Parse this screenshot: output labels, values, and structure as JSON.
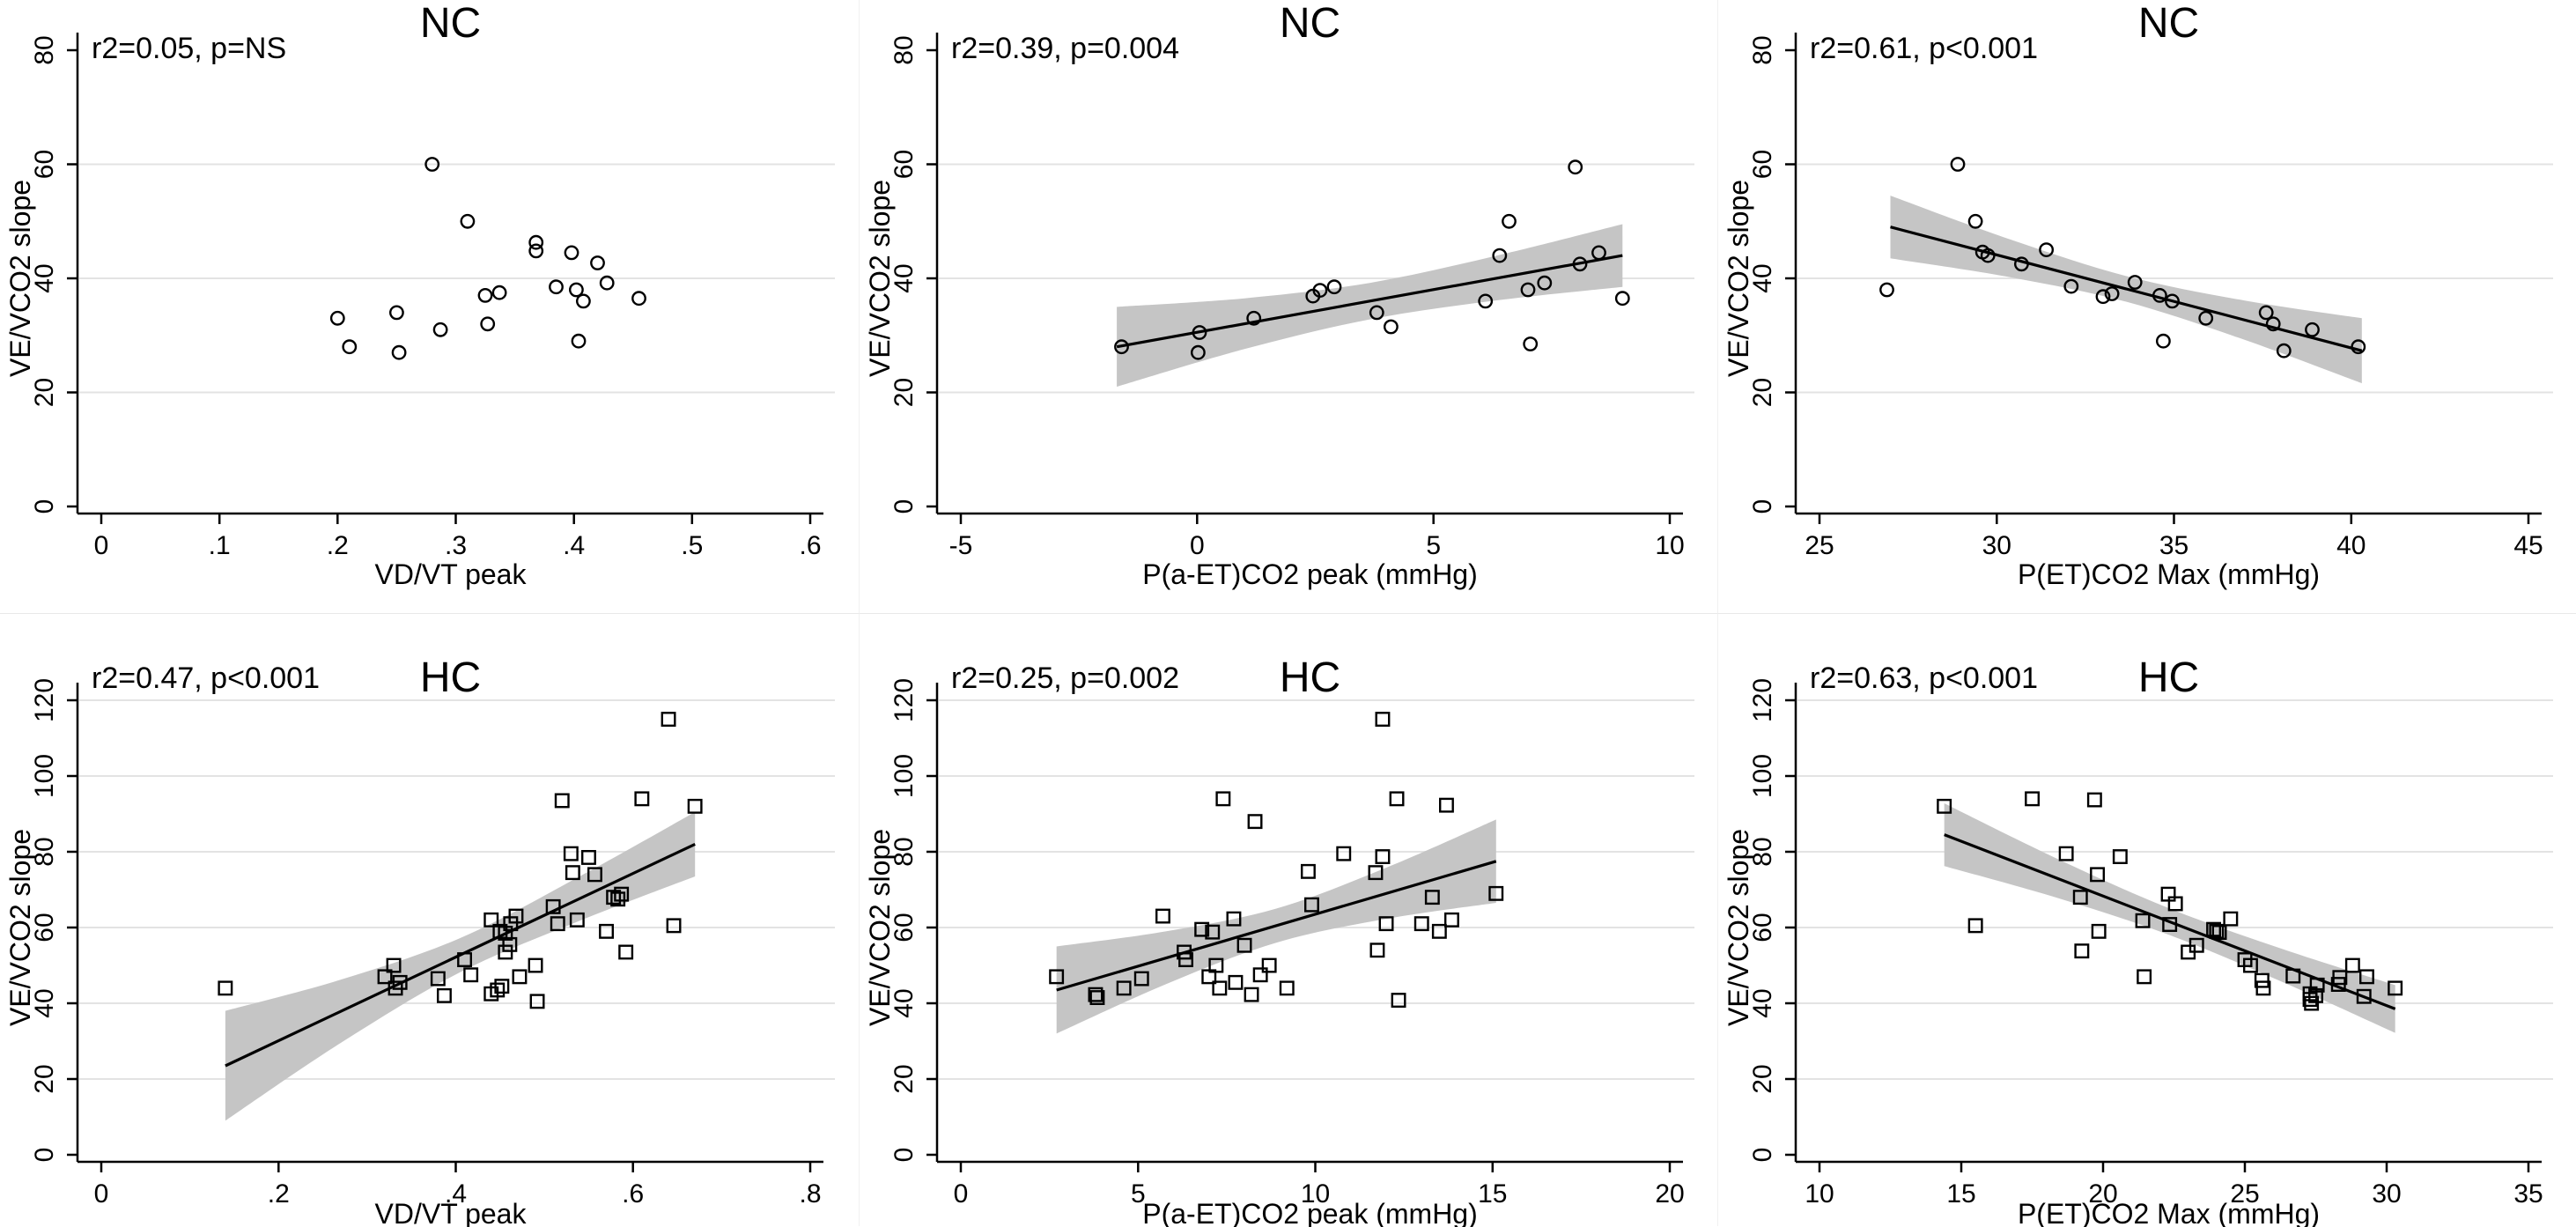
{
  "figure": {
    "kind": "scatter-panel-grid",
    "rows": 2,
    "cols": 3,
    "colors": {
      "marker": "#000000",
      "fit_line": "#000000",
      "ci_band": "#c5c5c5",
      "gridline": "#e3e3e3",
      "axis": "#000000",
      "text": "#000000",
      "background": "#ffffff"
    }
  },
  "chart_data": [
    {
      "id": "nc-vdvt-peak",
      "type": "scatter",
      "row": 0,
      "col": 0,
      "title": "NC",
      "annotation": "r2=0.05, p=NS",
      "xlabel": "VD/VT peak",
      "ylabel": "VE/VCO2 slope",
      "marker": "circle",
      "xlim": [
        0,
        0.6
      ],
      "ylim": [
        0,
        80
      ],
      "xticks": [
        0,
        0.1,
        0.2,
        0.3,
        0.4,
        0.5,
        0.6
      ],
      "xtick_labels": [
        "0",
        ".1",
        ".2",
        ".3",
        ".4",
        ".5",
        ".6"
      ],
      "yticks": [
        0,
        20,
        40,
        60,
        80
      ],
      "ytick_labels": [
        "0",
        "20",
        "40",
        "60",
        "80"
      ],
      "grid_y": [
        20,
        40,
        60
      ],
      "points": [
        [
          0.2,
          33
        ],
        [
          0.21,
          28
        ],
        [
          0.25,
          34
        ],
        [
          0.252,
          27
        ],
        [
          0.28,
          60
        ],
        [
          0.287,
          31
        ],
        [
          0.31,
          50
        ],
        [
          0.325,
          37
        ],
        [
          0.327,
          32
        ],
        [
          0.337,
          37.5
        ],
        [
          0.368,
          46.3
        ],
        [
          0.368,
          44.8
        ],
        [
          0.385,
          38.5
        ],
        [
          0.398,
          44.5
        ],
        [
          0.402,
          38
        ],
        [
          0.404,
          29
        ],
        [
          0.408,
          36
        ],
        [
          0.42,
          42.7
        ],
        [
          0.428,
          39.2
        ],
        [
          0.455,
          36.5
        ]
      ],
      "fit_line": null,
      "ci_band": null
    },
    {
      "id": "nc-pa-etco2-peak",
      "type": "scatter",
      "row": 0,
      "col": 1,
      "title": "NC",
      "annotation": "r2=0.39, p=0.004",
      "xlabel": "P(a-ET)CO2 peak (mmHg)",
      "ylabel": "VE/VCO2 slope",
      "marker": "circle",
      "xlim": [
        -5,
        10
      ],
      "ylim": [
        0,
        80
      ],
      "xticks": [
        -5,
        0,
        5,
        10
      ],
      "xtick_labels": [
        "-5",
        "0",
        "5",
        "10"
      ],
      "yticks": [
        0,
        20,
        40,
        60,
        80
      ],
      "ytick_labels": [
        "0",
        "20",
        "40",
        "60",
        "80"
      ],
      "grid_y": [
        20,
        40,
        60
      ],
      "points": [
        [
          -1.6,
          28
        ],
        [
          0.05,
          30.5
        ],
        [
          0.02,
          27
        ],
        [
          1.2,
          33
        ],
        [
          2.45,
          36.9
        ],
        [
          2.6,
          37.9
        ],
        [
          2.9,
          38.5
        ],
        [
          3.8,
          34
        ],
        [
          4.1,
          31.5
        ],
        [
          6.1,
          36
        ],
        [
          6.4,
          44
        ],
        [
          6.6,
          50
        ],
        [
          7.0,
          38
        ],
        [
          7.05,
          28.5
        ],
        [
          7.35,
          39.2
        ],
        [
          8.0,
          59.5
        ],
        [
          8.1,
          42.5
        ],
        [
          8.5,
          44.5
        ],
        [
          9.0,
          36.5
        ]
      ],
      "fit_line": [
        [
          -1.7,
          28
        ],
        [
          9.0,
          44
        ]
      ],
      "ci_band": [
        [
          -1.7,
          21,
          35
        ],
        [
          1.0,
          27.6,
          36.5
        ],
        [
          3.65,
          32.8,
          39.2
        ],
        [
          6.3,
          36.1,
          43.9
        ],
        [
          9.0,
          38.5,
          49.5
        ]
      ]
    },
    {
      "id": "nc-petco2-max",
      "type": "scatter",
      "row": 0,
      "col": 2,
      "title": "NC",
      "annotation": "r2=0.61, p<0.001",
      "xlabel": "P(ET)CO2 Max (mmHg)",
      "ylabel": "VE/VCO2 slope",
      "marker": "circle",
      "xlim": [
        25,
        45
      ],
      "ylim": [
        0,
        80
      ],
      "xticks": [
        25,
        30,
        35,
        40,
        45
      ],
      "xtick_labels": [
        "25",
        "30",
        "35",
        "40",
        "45"
      ],
      "yticks": [
        0,
        20,
        40,
        60,
        80
      ],
      "ytick_labels": [
        "0",
        "20",
        "40",
        "60",
        "80"
      ],
      "grid_y": [
        20,
        40,
        60
      ],
      "points": [
        [
          26.9,
          38
        ],
        [
          28.9,
          60
        ],
        [
          29.4,
          50
        ],
        [
          29.6,
          44.6
        ],
        [
          29.75,
          44
        ],
        [
          30.7,
          42.5
        ],
        [
          31.4,
          45
        ],
        [
          32.1,
          38.6
        ],
        [
          33.0,
          36.8
        ],
        [
          33.25,
          37.3
        ],
        [
          33.9,
          39.3
        ],
        [
          34.6,
          37
        ],
        [
          34.7,
          29
        ],
        [
          34.95,
          36
        ],
        [
          35.9,
          33
        ],
        [
          37.6,
          34
        ],
        [
          37.8,
          32
        ],
        [
          38.1,
          27.3
        ],
        [
          38.9,
          31
        ],
        [
          40.2,
          28
        ]
      ],
      "fit_line": [
        [
          27,
          49
        ],
        [
          40.3,
          27.3
        ]
      ],
      "ci_band": [
        [
          27,
          43.5,
          54.5
        ],
        [
          30.3,
          40.3,
          47
        ],
        [
          33.65,
          35.9,
          40.4
        ],
        [
          37,
          29.2,
          36.1
        ],
        [
          40.3,
          21.6,
          33
        ]
      ]
    },
    {
      "id": "hc-vdvt-peak",
      "type": "scatter",
      "row": 1,
      "col": 0,
      "title": "HC",
      "annotation": "r2=0.47, p<0.001",
      "xlabel": "VD/VT peak",
      "ylabel": "VE/VCO2 slope",
      "marker": "square",
      "xlim": [
        0,
        0.8
      ],
      "ylim": [
        0,
        120
      ],
      "xticks": [
        0,
        0.2,
        0.4,
        0.6,
        0.8
      ],
      "xtick_labels": [
        "0",
        ".2",
        ".4",
        ".6",
        ".8"
      ],
      "yticks": [
        0,
        20,
        40,
        60,
        80,
        100,
        120
      ],
      "ytick_labels": [
        "0",
        "20",
        "40",
        "60",
        "80",
        "100",
        "120"
      ],
      "grid_y": [
        20,
        40,
        60,
        80,
        100,
        120
      ],
      "points": [
        [
          0.14,
          44
        ],
        [
          0.32,
          47
        ],
        [
          0.33,
          50
        ],
        [
          0.332,
          44
        ],
        [
          0.337,
          45.5
        ],
        [
          0.38,
          46.5
        ],
        [
          0.387,
          42
        ],
        [
          0.41,
          51.5
        ],
        [
          0.417,
          47.5
        ],
        [
          0.44,
          62
        ],
        [
          0.44,
          42.5
        ],
        [
          0.447,
          43.5
        ],
        [
          0.45,
          59
        ],
        [
          0.452,
          44.5
        ],
        [
          0.456,
          58.5
        ],
        [
          0.456,
          53.5
        ],
        [
          0.461,
          55.5
        ],
        [
          0.462,
          61
        ],
        [
          0.468,
          63
        ],
        [
          0.472,
          47
        ],
        [
          0.49,
          50
        ],
        [
          0.492,
          40.5
        ],
        [
          0.51,
          65.5
        ],
        [
          0.515,
          61
        ],
        [
          0.52,
          93.5
        ],
        [
          0.53,
          79.5
        ],
        [
          0.532,
          74.5
        ],
        [
          0.537,
          62
        ],
        [
          0.55,
          78.5
        ],
        [
          0.557,
          74
        ],
        [
          0.57,
          59
        ],
        [
          0.578,
          68
        ],
        [
          0.583,
          67.5
        ],
        [
          0.587,
          68.8
        ],
        [
          0.592,
          53.5
        ],
        [
          0.61,
          94
        ],
        [
          0.64,
          115
        ],
        [
          0.646,
          60.5
        ],
        [
          0.67,
          92
        ]
      ],
      "fit_line": [
        [
          0.14,
          23.5
        ],
        [
          0.67,
          82
        ]
      ],
      "ci_band": [
        [
          0.14,
          9,
          38
        ],
        [
          0.27,
          29.5,
          46.2
        ],
        [
          0.405,
          48.2,
          57.2
        ],
        [
          0.54,
          61.8,
          73.5
        ],
        [
          0.67,
          73.5,
          90.5
        ]
      ]
    },
    {
      "id": "hc-pa-etco2-peak",
      "type": "scatter",
      "row": 1,
      "col": 1,
      "title": "HC",
      "annotation": "r2=0.25, p=0.002",
      "xlabel": "P(a-ET)CO2 peak (mmHg)",
      "ylabel": "VE/VCO2 slope",
      "marker": "square",
      "xlim": [
        0,
        20
      ],
      "ylim": [
        0,
        120
      ],
      "xticks": [
        0,
        5,
        10,
        15,
        20
      ],
      "xtick_labels": [
        "0",
        "5",
        "10",
        "15",
        "20"
      ],
      "yticks": [
        0,
        20,
        40,
        60,
        80,
        100,
        120
      ],
      "ytick_labels": [
        "0",
        "20",
        "40",
        "60",
        "80",
        "100",
        "120"
      ],
      "grid_y": [
        20,
        40,
        60,
        80,
        100,
        120
      ],
      "points": [
        [
          2.7,
          47
        ],
        [
          3.8,
          42.3
        ],
        [
          3.85,
          41.5
        ],
        [
          4.6,
          44
        ],
        [
          5.1,
          46.5
        ],
        [
          5.7,
          63
        ],
        [
          6.3,
          53.5
        ],
        [
          6.35,
          51.5
        ],
        [
          6.8,
          59.5
        ],
        [
          7.0,
          47
        ],
        [
          7.1,
          58.8
        ],
        [
          7.2,
          50
        ],
        [
          7.3,
          44
        ],
        [
          7.4,
          94
        ],
        [
          7.7,
          62.3
        ],
        [
          7.75,
          45.5
        ],
        [
          8.0,
          55.3
        ],
        [
          8.2,
          42.3
        ],
        [
          8.3,
          88
        ],
        [
          8.45,
          47.5
        ],
        [
          8.7,
          50
        ],
        [
          9.2,
          44
        ],
        [
          9.8,
          74.8
        ],
        [
          9.9,
          66
        ],
        [
          10.8,
          79.5
        ],
        [
          11.7,
          74.5
        ],
        [
          11.75,
          54
        ],
        [
          11.9,
          78.7
        ],
        [
          11.9,
          115
        ],
        [
          12.0,
          61
        ],
        [
          12.3,
          94
        ],
        [
          12.35,
          40.8
        ],
        [
          13.0,
          61
        ],
        [
          13.3,
          68
        ],
        [
          13.5,
          59
        ],
        [
          13.7,
          92.3
        ],
        [
          13.85,
          62
        ],
        [
          15.1,
          69
        ]
      ],
      "fit_line": [
        [
          2.7,
          43.5
        ],
        [
          15.1,
          77.5
        ]
      ],
      "ci_band": [
        [
          2.7,
          32,
          55
        ],
        [
          5.8,
          45.1,
          59
        ],
        [
          8.9,
          56,
          65
        ],
        [
          12,
          62.3,
          75.8
        ],
        [
          15.1,
          66.5,
          88.5
        ]
      ]
    },
    {
      "id": "hc-petco2-max",
      "type": "scatter",
      "row": 1,
      "col": 2,
      "title": "HC",
      "annotation": "r2=0.63, p<0.001",
      "xlabel": "P(ET)CO2 Max (mmHg)",
      "ylabel": "VE/VCO2 slope",
      "marker": "square",
      "xlim": [
        10,
        35
      ],
      "ylim": [
        0,
        120
      ],
      "xticks": [
        10,
        15,
        20,
        25,
        30,
        35
      ],
      "xtick_labels": [
        "10",
        "15",
        "20",
        "25",
        "30",
        "35"
      ],
      "yticks": [
        0,
        20,
        40,
        60,
        80,
        100,
        120
      ],
      "ytick_labels": [
        "0",
        "20",
        "40",
        "60",
        "80",
        "100",
        "120"
      ],
      "grid_y": [
        20,
        40,
        60,
        80,
        100,
        120
      ],
      "points": [
        [
          14.4,
          92
        ],
        [
          15.5,
          60.5
        ],
        [
          17.5,
          94
        ],
        [
          18.7,
          79.5
        ],
        [
          19.2,
          68
        ],
        [
          19.25,
          53.8
        ],
        [
          19.7,
          93.7
        ],
        [
          19.8,
          74
        ],
        [
          19.85,
          59
        ],
        [
          20.6,
          78.7
        ],
        [
          21.4,
          61.8
        ],
        [
          21.45,
          47
        ],
        [
          22.3,
          68.8
        ],
        [
          22.35,
          60.8
        ],
        [
          22.55,
          66.3
        ],
        [
          23.0,
          53.5
        ],
        [
          23.3,
          55.3
        ],
        [
          23.9,
          59.5
        ],
        [
          24.0,
          59
        ],
        [
          24.1,
          58.7
        ],
        [
          24.5,
          62.3
        ],
        [
          25.0,
          51.5
        ],
        [
          25.2,
          50
        ],
        [
          25.6,
          46
        ],
        [
          25.65,
          44
        ],
        [
          26.7,
          47.2
        ],
        [
          27.3,
          42.5
        ],
        [
          27.3,
          41
        ],
        [
          27.35,
          40
        ],
        [
          27.5,
          42
        ],
        [
          27.55,
          44.8
        ],
        [
          28.3,
          45
        ],
        [
          28.35,
          46.8
        ],
        [
          28.8,
          50
        ],
        [
          29.2,
          41.8
        ],
        [
          29.3,
          47
        ],
        [
          30.3,
          44
        ]
      ],
      "fit_line": [
        [
          14.4,
          84.5
        ],
        [
          30.3,
          38.5
        ]
      ],
      "ci_band": [
        [
          14.4,
          76.2,
          92.8
        ],
        [
          18.4,
          67.8,
          78.1
        ],
        [
          22.35,
          58,
          65
        ],
        [
          26.3,
          45.7,
          54.4
        ],
        [
          30.3,
          32.2,
          44.8
        ]
      ]
    }
  ]
}
